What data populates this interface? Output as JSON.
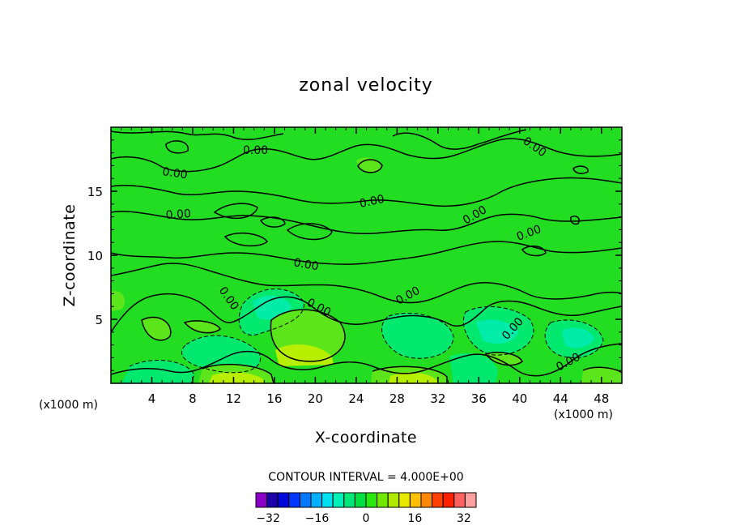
{
  "chart_data": {
    "type": "heatmap",
    "title": "zonal velocity",
    "xlabel": "X-coordinate",
    "ylabel": "Z-coordinate",
    "x_unit": "(x1000 m)",
    "y_unit": "(x1000 m)",
    "x_ticks": [
      4,
      8,
      12,
      16,
      20,
      24,
      28,
      32,
      36,
      40,
      44,
      48
    ],
    "y_ticks": [
      5,
      10,
      15
    ],
    "xlim": [
      0,
      50
    ],
    "ylim": [
      0,
      20
    ],
    "contour_interval_text": "CONTOUR INTERVAL = 4.000E+00",
    "contour_interval": 4.0,
    "contour_labels": [
      "0.00",
      "0.00",
      "0.00",
      "0.00",
      "0.00",
      "0.00",
      "0.00",
      "0.00",
      "0.00",
      "0.00",
      "0.00",
      "0.00"
    ],
    "colorbar": {
      "range": [
        -36,
        36
      ],
      "step": 4,
      "tick_values": [
        -32,
        -16,
        0,
        16,
        32
      ],
      "tick_labels": [
        "−32",
        "−16",
        "0",
        "16",
        "32"
      ],
      "colors": [
        "#8a00c8",
        "#1c00a8",
        "#0008d8",
        "#0038ff",
        "#0078ff",
        "#00b0ff",
        "#00e0f0",
        "#00f0b8",
        "#00e878",
        "#00e040",
        "#28e810",
        "#70e800",
        "#b0e800",
        "#e8e800",
        "#ffc000",
        "#ff8800",
        "#ff4000",
        "#ff2000",
        "#ff6060",
        "#ffa0a0"
      ]
    },
    "colors": {
      "background_field": "#22dd22",
      "positive_weak": "#5ce51a",
      "positive_moderate": "#b8ee00",
      "negative_weak": "#00e86e",
      "negative_moderate": "#00eca8"
    }
  }
}
